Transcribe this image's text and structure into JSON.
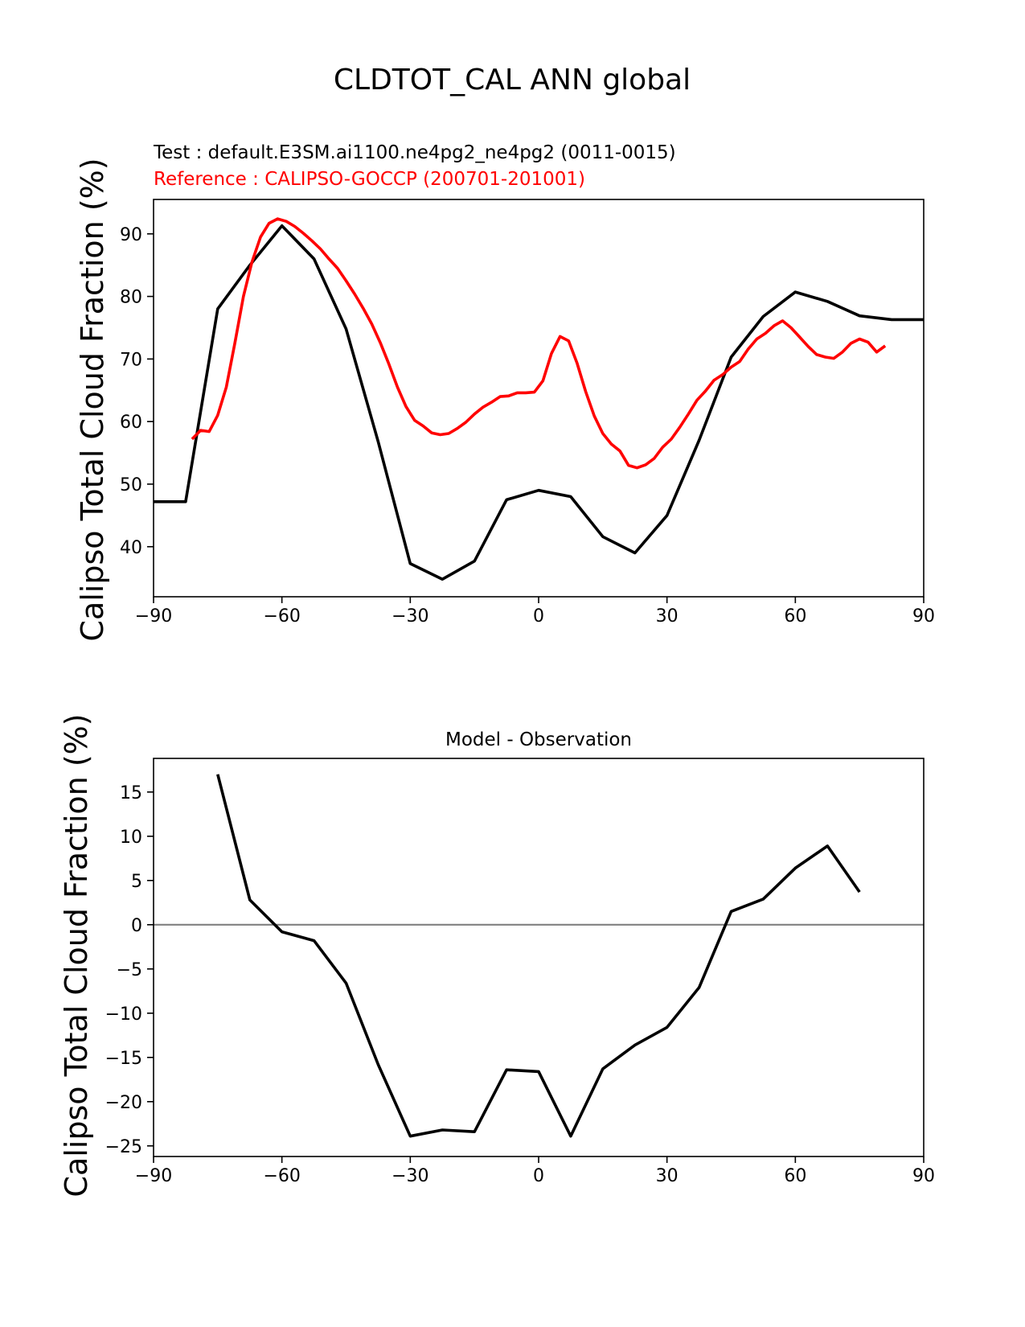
{
  "figure": {
    "title": "CLDTOT_CAL ANN global",
    "colors": {
      "test": "#000000",
      "reference": "#ff0000",
      "zero_line": "#808080"
    }
  },
  "chart_data": [
    {
      "type": "line",
      "test_label": "Test : default.E3SM.ai1100.ne4pg2_ne4pg2 (0011-0015)",
      "reference_label": "Reference : CALIPSO-GOCCP (200701-201001)",
      "ylabel": "Calipso Total Cloud Fraction (%)",
      "xlabel": "",
      "xlim": [
        -90,
        90
      ],
      "ylim": [
        32,
        95.5
      ],
      "xticks": [
        -90,
        -60,
        -30,
        0,
        30,
        60,
        90
      ],
      "xtick_labels": [
        "−90",
        "−60",
        "−30",
        "0",
        "30",
        "60",
        "90"
      ],
      "yticks": [
        40,
        50,
        60,
        70,
        80,
        90
      ],
      "series": [
        {
          "role": "test",
          "color": "#000000",
          "x": [
            -90,
            -82.5,
            -75,
            -67.5,
            -60,
            -52.5,
            -45,
            -37.5,
            -30,
            -22.5,
            -15,
            -7.5,
            0,
            7.5,
            15,
            22.5,
            30,
            37.5,
            45,
            52.5,
            60,
            67.5,
            75,
            82.5,
            90
          ],
          "y": [
            47.2,
            47.2,
            78,
            85,
            91.3,
            86,
            74.8,
            56.8,
            37.3,
            34.8,
            37.7,
            47.5,
            49,
            48,
            41.6,
            39,
            45,
            57,
            70.3,
            76.8,
            80.7,
            79.2,
            76.9,
            76.3,
            76.3
          ]
        },
        {
          "role": "reference",
          "color": "#ff0000",
          "x": [
            -81,
            -79,
            -77,
            -75,
            -73,
            -71,
            -69,
            -67,
            -65,
            -63,
            -61,
            -59,
            -57,
            -55,
            -53,
            -51,
            -49,
            -47,
            -45,
            -43,
            -41,
            -39,
            -37,
            -35,
            -33,
            -31,
            -29,
            -27,
            -25,
            -23,
            -21,
            -19,
            -17,
            -15,
            -13,
            -11,
            -9,
            -7,
            -5,
            -3,
            -1,
            1,
            3,
            5,
            7,
            9,
            11,
            13,
            15,
            17,
            19,
            21,
            23,
            25,
            27,
            29,
            31,
            33,
            35,
            37,
            39,
            41,
            43,
            45,
            47,
            49,
            51,
            53,
            55,
            57,
            59,
            61,
            63,
            65,
            67,
            69,
            71,
            73,
            75,
            77,
            79,
            81
          ],
          "y": [
            57.2,
            58.6,
            58.4,
            61,
            65.5,
            72.5,
            80,
            85.5,
            89.5,
            91.7,
            92.4,
            92,
            91.2,
            90.1,
            88.9,
            87.6,
            86,
            84.5,
            82.5,
            80.4,
            78.1,
            75.6,
            72.6,
            69.2,
            65.5,
            62.4,
            60.2,
            59.3,
            58.2,
            57.9,
            58.1,
            58.9,
            59.9,
            61.2,
            62.3,
            63.1,
            64,
            64.1,
            64.6,
            64.6,
            64.7,
            66.5,
            70.9,
            73.6,
            72.9,
            69.3,
            64.8,
            60.9,
            58.1,
            56.4,
            55.3,
            53,
            52.6,
            53.1,
            54.1,
            55.9,
            57.2,
            59.1,
            61.2,
            63.4,
            64.9,
            66.6,
            67.5,
            68.7,
            69.6,
            71.6,
            73.2,
            74.1,
            75.3,
            76.1,
            75,
            73.5,
            72,
            70.7,
            70.3,
            70.1,
            71.1,
            72.5,
            73.2,
            72.7,
            71.1,
            72.1
          ]
        }
      ]
    },
    {
      "type": "line",
      "title": "Model - Observation",
      "ylabel": "Calipso Total Cloud Fraction (%)",
      "xlabel": "",
      "xlim": [
        -90,
        90
      ],
      "ylim": [
        -26.2,
        18.8
      ],
      "xticks": [
        -90,
        -60,
        -30,
        0,
        30,
        60,
        90
      ],
      "xtick_labels": [
        "−90",
        "−60",
        "−30",
        "0",
        "30",
        "60",
        "90"
      ],
      "yticks": [
        -25,
        -20,
        -15,
        -10,
        -5,
        0,
        5,
        10,
        15
      ],
      "ytick_labels": [
        "−25",
        "−20",
        "−15",
        "−10",
        "−5",
        "0",
        "5",
        "10",
        "15"
      ],
      "zero_line": 0,
      "series": [
        {
          "role": "difference",
          "color": "#000000",
          "x": [
            -75,
            -67.5,
            -60,
            -52.5,
            -45,
            -37.5,
            -30,
            -22.5,
            -15,
            -7.5,
            0,
            7.5,
            15,
            22.5,
            30,
            37.5,
            45,
            52.5,
            60,
            67.5,
            75
          ],
          "y": [
            17,
            2.8,
            -0.8,
            -1.8,
            -6.6,
            -15.8,
            -23.9,
            -23.2,
            -23.4,
            -16.4,
            -16.6,
            -23.9,
            -16.3,
            -13.6,
            -11.6,
            -7.1,
            1.5,
            2.9,
            6.4,
            8.9,
            3.7
          ]
        }
      ]
    }
  ]
}
